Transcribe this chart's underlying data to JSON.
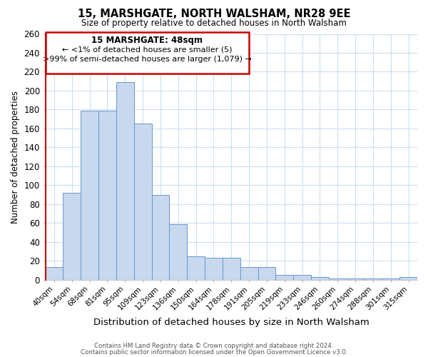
{
  "title": "15, MARSHGATE, NORTH WALSHAM, NR28 9EE",
  "subtitle": "Size of property relative to detached houses in North Walsham",
  "xlabel": "Distribution of detached houses by size in North Walsham",
  "ylabel": "Number of detached properties",
  "bar_labels": [
    "40sqm",
    "54sqm",
    "68sqm",
    "81sqm",
    "95sqm",
    "109sqm",
    "123sqm",
    "136sqm",
    "150sqm",
    "164sqm",
    "178sqm",
    "191sqm",
    "205sqm",
    "219sqm",
    "233sqm",
    "246sqm",
    "260sqm",
    "274sqm",
    "288sqm",
    "301sqm",
    "315sqm"
  ],
  "bar_values": [
    13,
    92,
    179,
    179,
    209,
    165,
    90,
    59,
    25,
    23,
    23,
    13,
    13,
    5,
    5,
    3,
    1,
    1,
    1,
    1,
    3
  ],
  "bar_color": "#c8d8ee",
  "bar_edge_color": "#6699cc",
  "highlight_color": "#cc0000",
  "highlight_index": 0,
  "ylim": [
    0,
    260
  ],
  "yticks": [
    0,
    20,
    40,
    60,
    80,
    100,
    120,
    140,
    160,
    180,
    200,
    220,
    240,
    260
  ],
  "annotation_title": "15 MARSHGATE: 48sqm",
  "annotation_line1": "← <1% of detached houses are smaller (5)",
  "annotation_line2": ">99% of semi-detached houses are larger (1,079) →",
  "footer1": "Contains HM Land Registry data © Crown copyright and database right 2024.",
  "footer2": "Contains public sector information licensed under the Open Government Licence v3.0.",
  "plot_bg_color": "#ffffff",
  "fig_bg_color": "#ffffff",
  "grid_color": "#ccddee"
}
